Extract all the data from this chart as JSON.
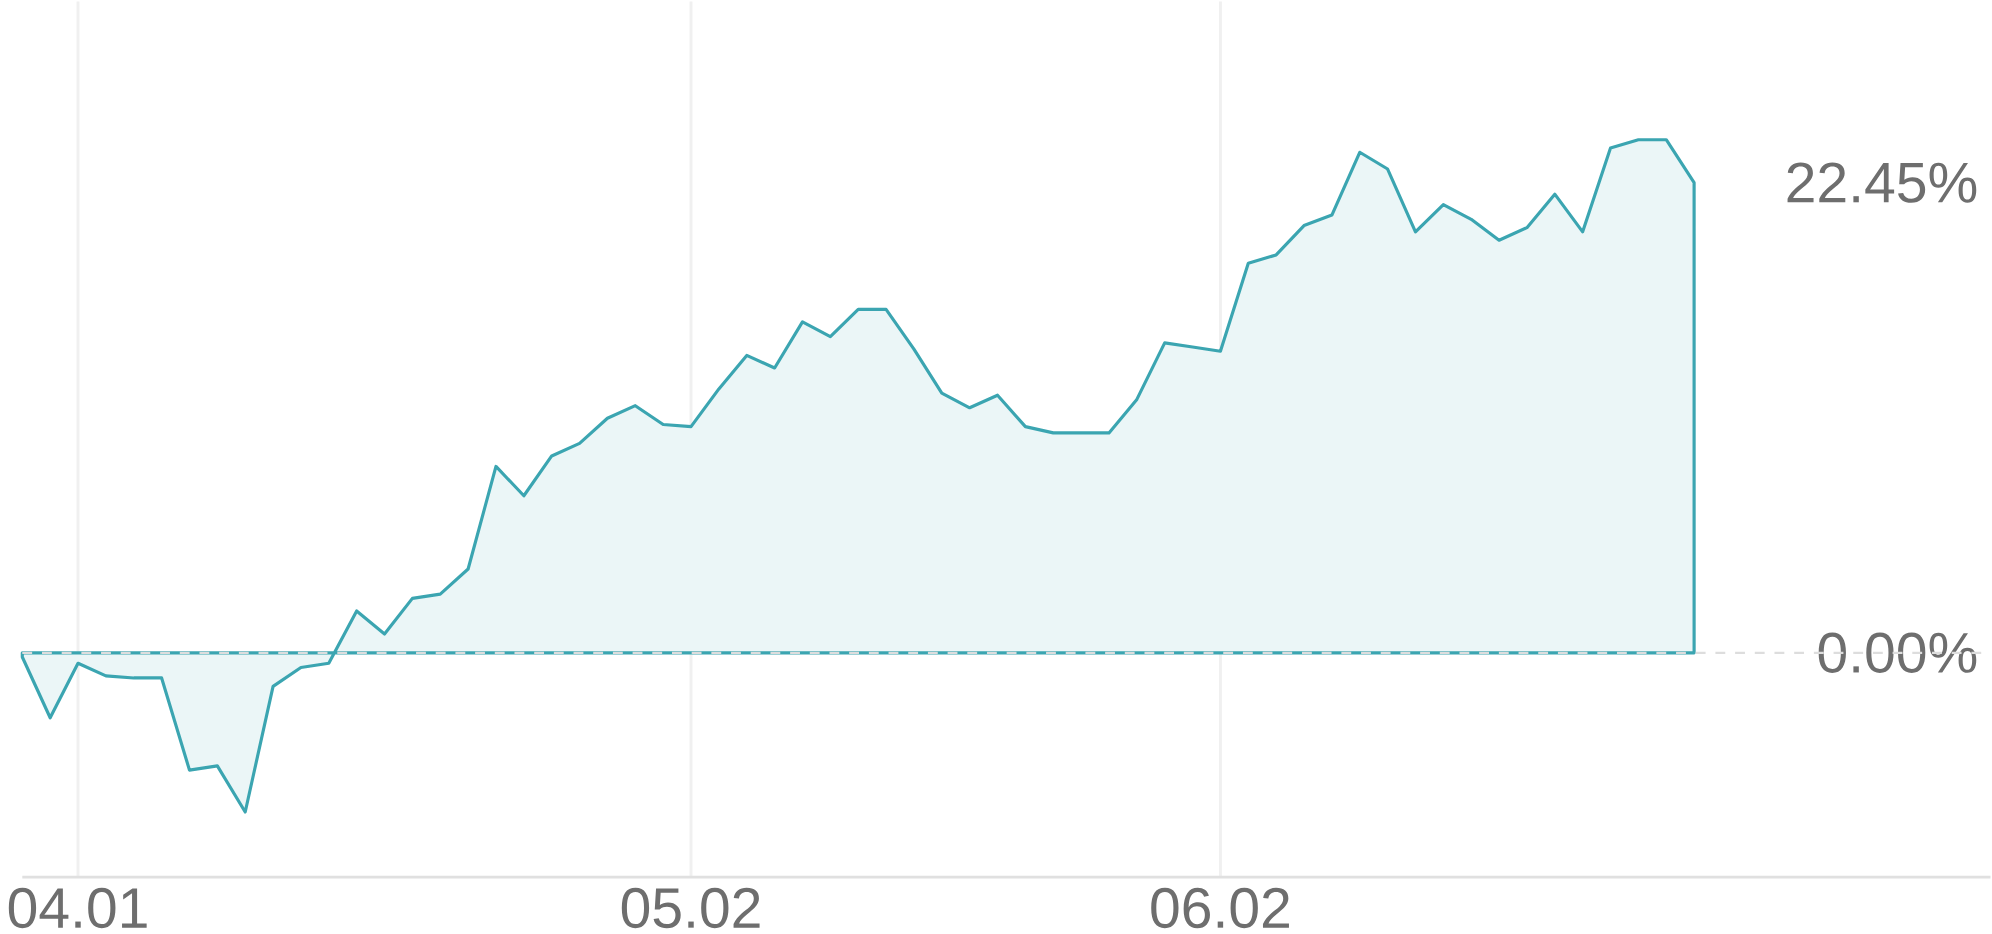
{
  "chart_data": {
    "type": "area",
    "color": "#3ba5b1",
    "categories": [
      null,
      null,
      "04.01",
      null,
      null,
      null,
      null,
      null,
      null,
      null,
      null,
      null,
      null,
      null,
      null,
      null,
      null,
      null,
      null,
      null,
      null,
      null,
      null,
      null,
      "05.02",
      null,
      null,
      null,
      null,
      null,
      null,
      null,
      null,
      null,
      null,
      null,
      null,
      null,
      null,
      null,
      null,
      null,
      null,
      "06.02",
      null,
      null,
      null,
      null,
      null,
      null,
      null,
      null,
      null,
      null,
      null,
      null,
      null,
      null,
      null,
      null,
      null
    ],
    "values": [
      -0.2,
      -3.1,
      -0.5,
      -1.1,
      -1.2,
      -1.2,
      -5.6,
      -5.4,
      -7.6,
      -1.6,
      -0.7,
      -0.5,
      2.0,
      0.9,
      2.6,
      2.8,
      4.0,
      8.9,
      7.5,
      9.4,
      10.0,
      11.2,
      11.8,
      10.9,
      10.8,
      12.6,
      14.2,
      13.6,
      15.8,
      15.1,
      16.4,
      16.4,
      14.5,
      12.4,
      11.7,
      12.3,
      10.8,
      10.5,
      10.5,
      10.5,
      12.1,
      14.8,
      14.6,
      14.4,
      18.6,
      19.0,
      20.4,
      20.9,
      23.9,
      23.1,
      20.1,
      21.4,
      20.7,
      19.7,
      20.3,
      21.9,
      20.1,
      24.1,
      24.5,
      24.5,
      22.45
    ],
    "ylim": [
      -10.7,
      31.1
    ],
    "yticks": [
      {
        "value": 0,
        "label": "0.00%"
      },
      {
        "value": 22.45,
        "label": "22.45%"
      }
    ],
    "grid": "x",
    "ref_lines": [
      {
        "axis": "y",
        "value": 0,
        "color": "#dddddd",
        "line_style": "dashed"
      }
    ]
  }
}
